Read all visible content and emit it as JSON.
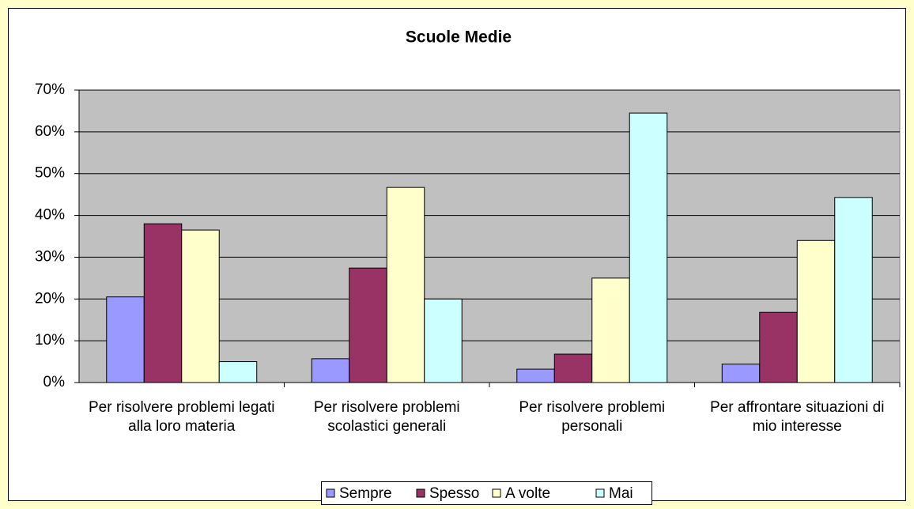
{
  "chart_data": {
    "type": "bar",
    "title": "Scuole Medie",
    "categories": [
      "Per risolvere problemi legati alla loro materia",
      "Per risolvere problemi scolastici generali",
      "Per risolvere problemi personali",
      "Per affrontare situazioni di mio interesse"
    ],
    "series": [
      {
        "name": "Sempre",
        "color": "#9999ff",
        "values": [
          20.5,
          5.7,
          3.2,
          4.4
        ]
      },
      {
        "name": "Spesso",
        "color": "#993366",
        "values": [
          38,
          27.4,
          6.8,
          16.8
        ]
      },
      {
        "name": "A volte",
        "color": "#ffffcc",
        "values": [
          36.5,
          46.7,
          25,
          34
        ]
      },
      {
        "name": "Mai",
        "color": "#ccffff",
        "values": [
          5,
          20,
          64.5,
          44.3
        ]
      }
    ],
    "ylim": [
      0,
      70
    ],
    "yticks": [
      {
        "value": 0,
        "label": "0%"
      },
      {
        "value": 10,
        "label": "10%"
      },
      {
        "value": 20,
        "label": "20%"
      },
      {
        "value": 30,
        "label": "30%"
      },
      {
        "value": 40,
        "label": "40%"
      },
      {
        "value": 50,
        "label": "50%"
      },
      {
        "value": 60,
        "label": "60%"
      },
      {
        "value": 70,
        "label": "70%"
      }
    ],
    "grid": true,
    "legend": "bottom"
  }
}
